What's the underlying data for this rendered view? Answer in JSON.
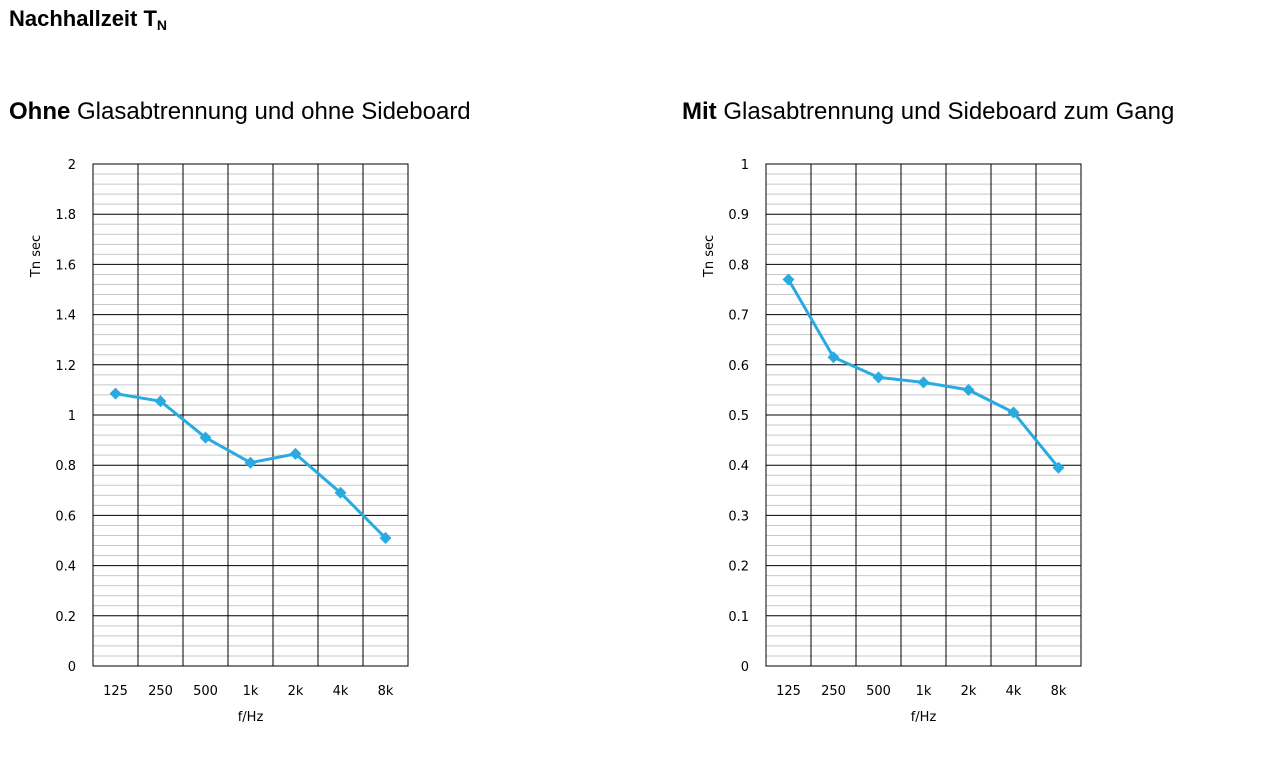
{
  "page": {
    "title_main": "Nachhallzeit T",
    "title_sub": "N"
  },
  "colors": {
    "series": "#29abe2",
    "grid_major": "#000000",
    "grid_minor": "#c8c8c8"
  },
  "chart_data": [
    {
      "type": "line",
      "heading_bold": "Ohne",
      "heading_rest": " Glasabtrennung und ohne Sideboard",
      "xlabel": "f/Hz",
      "ylabel": "Tn  sec",
      "categories": [
        "125",
        "250",
        "500",
        "1k",
        "2k",
        "4k",
        "8k"
      ],
      "series": [
        {
          "values": [
            1.085,
            1.055,
            0.91,
            0.81,
            0.845,
            0.69,
            0.51
          ]
        }
      ],
      "ylim": [
        0,
        2
      ],
      "ytick_step": 0.2,
      "ytick_labels": [
        "0",
        "0.2",
        "0.4",
        "0.6",
        "0.8",
        "1",
        "1.2",
        "1.4",
        "1.6",
        "1.8",
        "2"
      ],
      "minor_per_major": 5,
      "grid": true,
      "legend": "none"
    },
    {
      "type": "line",
      "heading_bold": "Mit",
      "heading_rest": " Glasabtrennung und Sideboard zum Gang",
      "xlabel": "f/Hz",
      "ylabel": "Tn  sec",
      "categories": [
        "125",
        "250",
        "500",
        "1k",
        "2k",
        "4k",
        "8k"
      ],
      "series": [
        {
          "values": [
            0.77,
            0.615,
            0.575,
            0.565,
            0.55,
            0.505,
            0.395
          ]
        }
      ],
      "ylim": [
        0,
        1
      ],
      "ytick_step": 0.1,
      "ytick_labels": [
        "0",
        "0.1",
        "0.2",
        "0.3",
        "0.4",
        "0.5",
        "0.6",
        "0.7",
        "0.8",
        "0.9",
        "1"
      ],
      "minor_per_major": 5,
      "grid": true,
      "legend": "none"
    }
  ]
}
